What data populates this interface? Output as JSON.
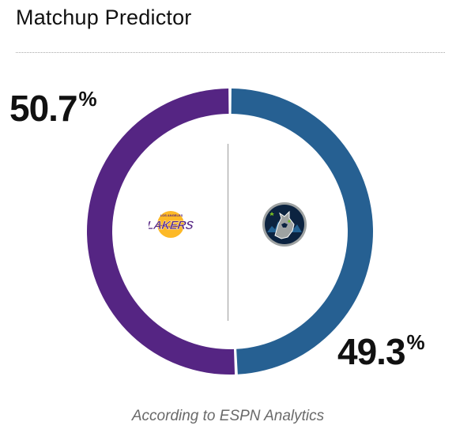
{
  "widget": {
    "title": "Matchup Predictor",
    "attribution": "According to ESPN Analytics"
  },
  "teams": {
    "left": {
      "name": "Lakers",
      "logo_icon": "lakers-logo-icon",
      "win_probability": "50.7",
      "percent_sign": "%",
      "color": "#552583"
    },
    "right": {
      "name": "Timberwolves",
      "logo_icon": "timberwolves-logo-icon",
      "win_probability": "49.3",
      "percent_sign": "%",
      "color": "#266092"
    }
  },
  "colors": {
    "divider": "#a8a8a8",
    "center_line": "#9c9c9c",
    "lakers_gold": "#FDB927",
    "twolves_navy": "#0C2340",
    "twolves_green": "#78BE20"
  }
}
